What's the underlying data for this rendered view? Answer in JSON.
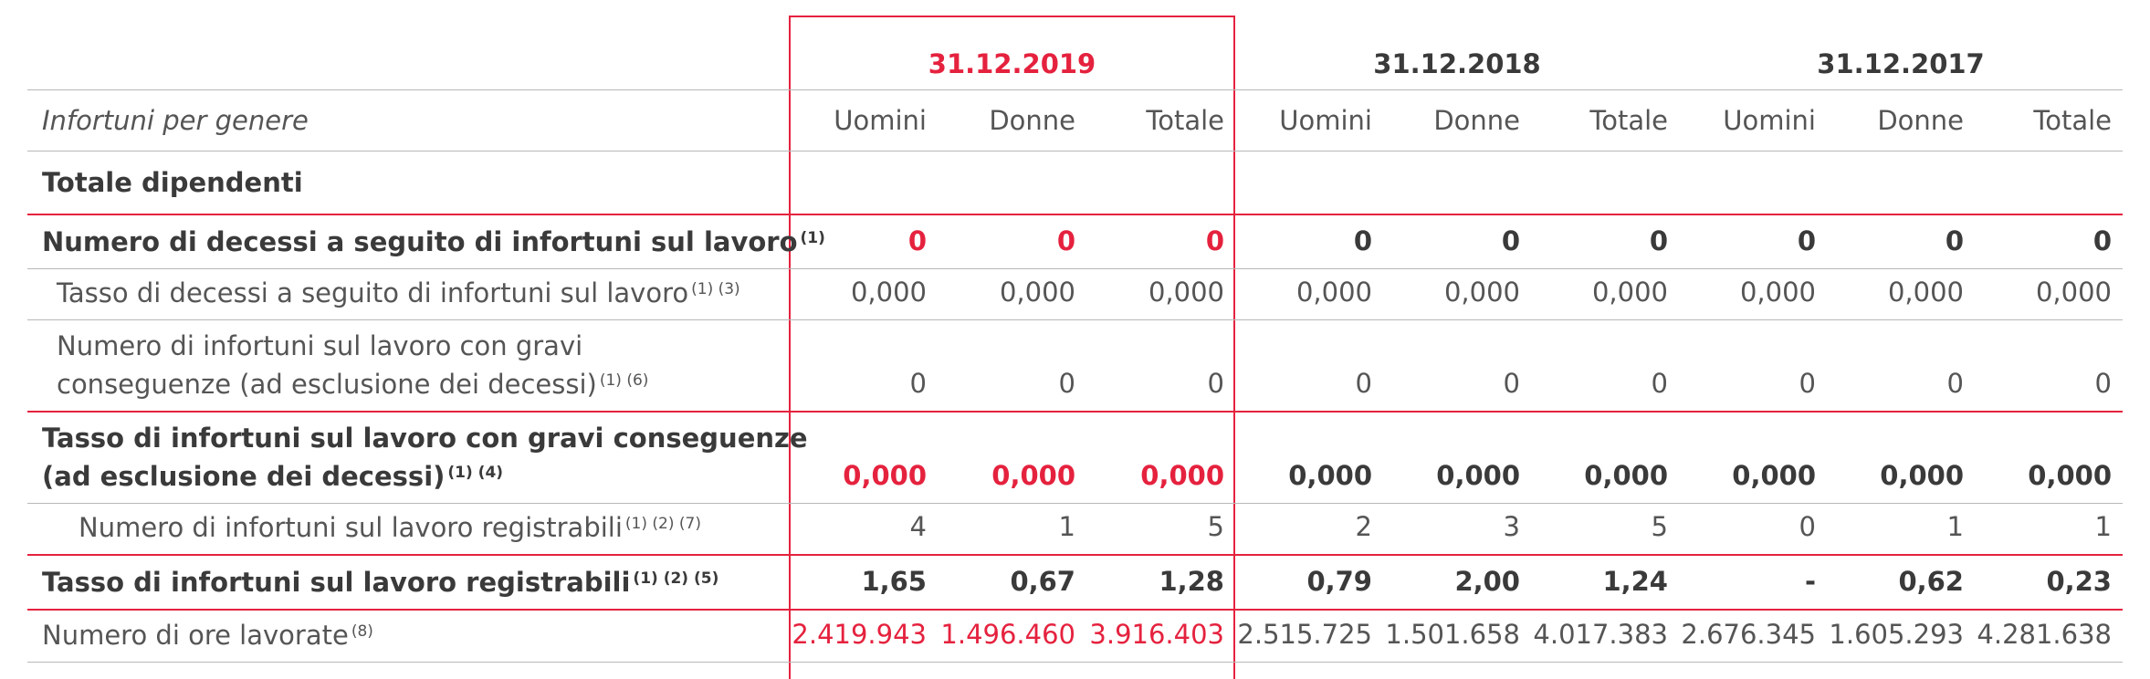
{
  "header": {
    "years": [
      "31.12.2019",
      "31.12.2018",
      "31.12.2017"
    ],
    "row_label": "Infortuni per genere",
    "subheaders": [
      "Uomini",
      "Donne",
      "Totale",
      "Uomini",
      "Donne",
      "Totale",
      "Uomini",
      "Donne",
      "Totale"
    ]
  },
  "table": {
    "rows": [
      {
        "label": [
          "Totale dipendenti"
        ]
      },
      {
        "label": [
          "Numero di decessi a seguito di infortuni sul lavoro"
        ],
        "notes": "(1)",
        "cells": [
          "0",
          "0",
          "0",
          "0",
          "0",
          "0",
          "0",
          "0",
          "0"
        ]
      },
      {
        "label": [
          "Tasso di decessi a seguito di infortuni sul lavoro"
        ],
        "notes": "(1) (3)",
        "cells": [
          "0,000",
          "0,000",
          "0,000",
          "0,000",
          "0,000",
          "0,000",
          "0,000",
          "0,000",
          "0,000"
        ]
      },
      {
        "label": [
          "Numero di infortuni sul lavoro con gravi",
          "conseguenze (ad esclusione dei decessi)"
        ],
        "notes": "(1) (6)",
        "cells": [
          "0",
          "0",
          "0",
          "0",
          "0",
          "0",
          "0",
          "0",
          "0"
        ]
      },
      {
        "label": [
          "Tasso di infortuni sul lavoro con gravi conseguenze",
          "(ad esclusione dei decessi)"
        ],
        "notes": "(1) (4)",
        "cells": [
          "0,000",
          "0,000",
          "0,000",
          "0,000",
          "0,000",
          "0,000",
          "0,000",
          "0,000",
          "0,000"
        ]
      },
      {
        "label": [
          "Numero di infortuni sul lavoro registrabili"
        ],
        "notes": "(1) (2) (7)",
        "cells": [
          "4",
          "1",
          "5",
          "2",
          "3",
          "5",
          "0",
          "1",
          "1"
        ]
      },
      {
        "label": [
          "Tasso di infortuni sul lavoro registrabili"
        ],
        "notes": "(1) (2) (5)",
        "cells": [
          "1,65",
          "0,67",
          "1,28",
          "0,79",
          "2,00",
          "1,24",
          "-",
          "0,62",
          "0,23"
        ]
      },
      {
        "label": [
          "Numero di ore lavorate"
        ],
        "notes": "(8)",
        "cells": [
          "2.419.943",
          "1.496.460",
          "3.916.403",
          "2.515.725",
          "1.501.658",
          "4.017.383",
          "2.676.345",
          "1.605.293",
          "4.281.638"
        ]
      }
    ]
  }
}
